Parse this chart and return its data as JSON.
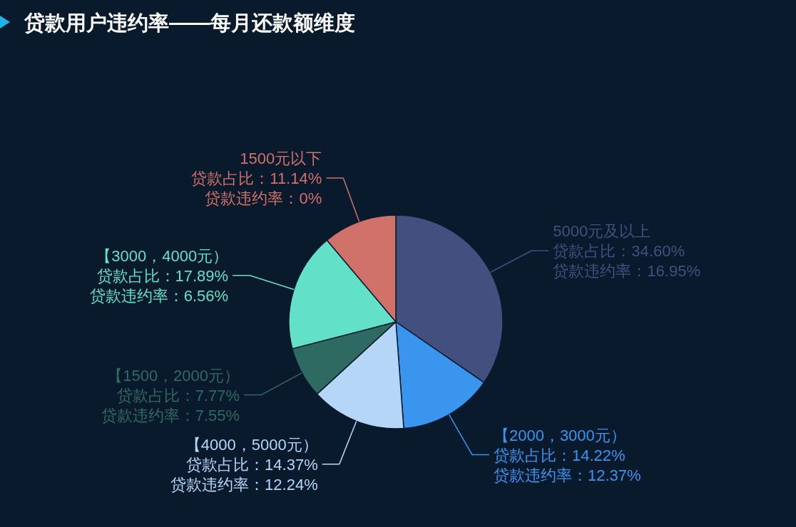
{
  "chart_data": {
    "type": "pie",
    "title": "贷款用户违约率——每月还款额维度",
    "categories": [
      "5000元及以上",
      "【2000，3000元）",
      "【4000，5000元）",
      "【1500，2000元）",
      "【3000，4000元）",
      "1500元以下"
    ],
    "colors": [
      "#434f7e",
      "#3a95ef",
      "#b5d6f7",
      "#2f6a62",
      "#62e0c8",
      "#d0716a"
    ],
    "values": [
      34.6,
      14.22,
      14.37,
      7.77,
      17.89,
      11.14
    ],
    "value_labels": [
      "贷款占比：34.60%",
      "贷款占比：14.22%",
      "贷款占比：14.37%",
      "贷款占比：7.77%",
      "贷款占比：17.89%",
      "贷款占比：11.14%"
    ],
    "annotations": [
      "贷款违约率：16.95%",
      "贷款违约率：12.37%",
      "贷款违约率：12.24%",
      "贷款违约率：7.55%",
      "贷款违约率：6.56%",
      "贷款违约率：0%"
    ]
  }
}
